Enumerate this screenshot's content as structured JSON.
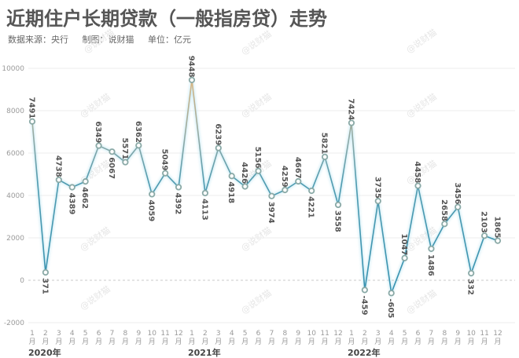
{
  "header": {
    "title": "近期住户长期贷款（一般指房贷）走势",
    "source": "数据来源：央行",
    "author": "制图：说财猫",
    "unit": "单位：亿元"
  },
  "watermark": "@说财猫",
  "chart_data": {
    "type": "line",
    "title": "近期住户长期贷款（一般指房贷）走势",
    "subtitle": "数据来源：央行　制图：说财猫　单位：亿元",
    "xlabel": "",
    "ylabel": "亿元",
    "ylim": [
      -2000,
      10000
    ],
    "yticks": [
      -2000,
      0,
      2000,
      4000,
      6000,
      8000,
      10000
    ],
    "grid": true,
    "zero_line": "dashed",
    "legend": "none",
    "years": [
      {
        "label": "2020年",
        "start_index": 0
      },
      {
        "label": "2021年",
        "start_index": 12
      },
      {
        "label": "2022年",
        "start_index": 24
      }
    ],
    "categories": [
      "2020-1月",
      "2020-2月",
      "2020-3月",
      "2020-4月",
      "2020-5月",
      "2020-6月",
      "2020-7月",
      "2020-8月",
      "2020-9月",
      "2020-10月",
      "2020-11月",
      "2020-12月",
      "2021-1月",
      "2021-2月",
      "2021-3月",
      "2021-4月",
      "2021-5月",
      "2021-6月",
      "2021-7月",
      "2021-8月",
      "2021-9月",
      "2021-10月",
      "2021-11月",
      "2021-12月",
      "2022-1月",
      "2022-2月",
      "2022-3月",
      "2022-4月",
      "2022-5月",
      "2022-6月",
      "2022-7月",
      "2022-8月",
      "2022-9月",
      "2022-10月",
      "2022-11月",
      "2022-12月"
    ],
    "month_labels": [
      "1",
      "2",
      "3",
      "4",
      "5",
      "6",
      "7",
      "8",
      "9",
      "10",
      "11",
      "12",
      "1",
      "2",
      "3",
      "4",
      "5",
      "6",
      "7",
      "8",
      "9",
      "10",
      "11",
      "12",
      "1",
      "2",
      "3",
      "4",
      "5",
      "6",
      "7",
      "8",
      "9",
      "10",
      "11",
      "12"
    ],
    "month_suffix": "月",
    "series": [
      {
        "name": "住户长期贷款",
        "values": [
          7491,
          371,
          4738,
          4389,
          4662,
          6349,
          6067,
          5571,
          6362,
          4059,
          5049,
          4392,
          9448,
          4113,
          6239,
          4918,
          4426,
          5156,
          3974,
          4259,
          4667,
          4221,
          5821,
          3558,
          7424,
          -459,
          3735,
          -605,
          1047,
          4458,
          1486,
          2658,
          3456,
          332,
          2103,
          1865
        ],
        "label_position": [
          "above",
          "below",
          "above",
          "below",
          "below",
          "above",
          "below",
          "above",
          "above",
          "below",
          "above",
          "below",
          "above",
          "below",
          "above",
          "below",
          "above",
          "above",
          "below",
          "above",
          "above",
          "below",
          "above",
          "below",
          "above",
          "below",
          "above",
          "below",
          "above",
          "above",
          "below",
          "above",
          "above",
          "below",
          "above",
          "above"
        ]
      }
    ],
    "colors": {
      "line_low": "#2f8fb0",
      "line_high": "#e8b87a",
      "marker_stroke": "#8aa9a6",
      "marker_fill": "#ffffff",
      "grid": "#eeeeee",
      "zero_line": "#c8c8c8"
    }
  }
}
